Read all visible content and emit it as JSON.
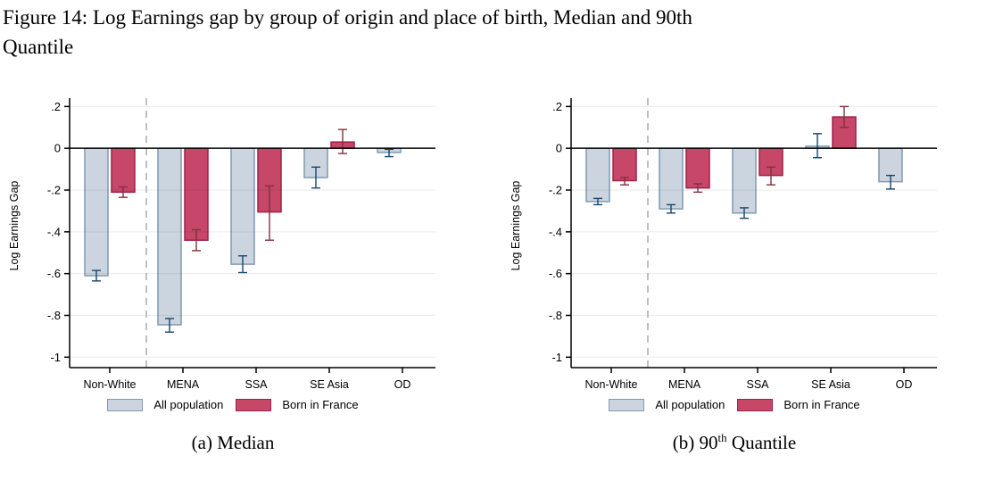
{
  "title": {
    "line1": "Figure 14: Log Earnings gap by group of origin and place of birth, Median and 90th",
    "line2": "Quantile"
  },
  "colors": {
    "all_population_fill": "#ccd5df",
    "all_population_border": "#7f9ab1",
    "all_population_error": "#16456e",
    "born_in_france_fill": "#c64768",
    "born_in_france_border": "#9e2149",
    "born_in_france_error": "#7d3340",
    "gridline": "rgba(0,0,0,0.08)",
    "zero_line": "#000000",
    "axis": "#000000",
    "dashed_separator": "#a6a6a6",
    "text": "#000000"
  },
  "chart_data": [
    {
      "type": "bar",
      "title": "(a) Median",
      "caption": {
        "prefix": "(a) Median",
        "sup": "",
        "suffix": ""
      },
      "ylabel": "Log Earnings Gap",
      "xlabel": "",
      "ylim": [
        -1.05,
        0.24
      ],
      "grid": true,
      "legend_position": "bottom",
      "separator_after_category": 0,
      "categories": [
        "Non-White",
        "MENA",
        "SSA",
        "SE Asia",
        "OD"
      ],
      "yticks": [
        {
          "v": 0.2,
          "label": ".2"
        },
        {
          "v": 0,
          "label": "0"
        },
        {
          "v": -0.2,
          "label": "-.2"
        },
        {
          "v": -0.4,
          "label": "-.4"
        },
        {
          "v": -0.6,
          "label": "-.6"
        },
        {
          "v": -0.8,
          "label": "-.8"
        },
        {
          "v": -1,
          "label": "-1"
        }
      ],
      "series": [
        {
          "name": "All population",
          "values": [
            -0.61,
            -0.845,
            -0.555,
            -0.14,
            -0.02
          ],
          "ci": [
            [
              -0.635,
              -0.585
            ],
            [
              -0.88,
              -0.815
            ],
            [
              -0.595,
              -0.515
            ],
            [
              -0.19,
              -0.09
            ],
            [
              -0.04,
              -0.005
            ]
          ]
        },
        {
          "name": "Born in France",
          "values": [
            -0.21,
            -0.44,
            -0.305,
            0.03,
            null
          ],
          "ci": [
            [
              -0.235,
              -0.185
            ],
            [
              -0.49,
              -0.39
            ],
            [
              -0.44,
              -0.18
            ],
            [
              -0.025,
              0.09
            ],
            null
          ]
        }
      ]
    },
    {
      "type": "bar",
      "title": "(b) 90th Quantile",
      "caption": {
        "prefix": "(b) 90",
        "sup": "th",
        "suffix": " Quantile"
      },
      "ylabel": "Log Earnings Gap",
      "xlabel": "",
      "ylim": [
        -1.05,
        0.24
      ],
      "grid": true,
      "legend_position": "bottom",
      "separator_after_category": 0,
      "categories": [
        "Non-White",
        "MENA",
        "SSA",
        "SE Asia",
        "OD"
      ],
      "yticks": [
        {
          "v": 0.2,
          "label": ".2"
        },
        {
          "v": 0,
          "label": "0"
        },
        {
          "v": -0.2,
          "label": "-.2"
        },
        {
          "v": -0.4,
          "label": "-.4"
        },
        {
          "v": -0.6,
          "label": "-.6"
        },
        {
          "v": -0.8,
          "label": "-.8"
        },
        {
          "v": -1,
          "label": "-1"
        }
      ],
      "series": [
        {
          "name": "All population",
          "values": [
            -0.255,
            -0.29,
            -0.31,
            0.01,
            -0.16
          ],
          "ci": [
            [
              -0.27,
              -0.24
            ],
            [
              -0.31,
              -0.27
            ],
            [
              -0.335,
              -0.285
            ],
            [
              -0.045,
              0.07
            ],
            [
              -0.195,
              -0.13
            ]
          ]
        },
        {
          "name": "Born in France",
          "values": [
            -0.155,
            -0.19,
            -0.13,
            0.15,
            null
          ],
          "ci": [
            [
              -0.175,
              -0.14
            ],
            [
              -0.21,
              -0.17
            ],
            [
              -0.175,
              -0.09
            ],
            [
              0.1,
              0.2
            ],
            null
          ]
        }
      ]
    }
  ]
}
